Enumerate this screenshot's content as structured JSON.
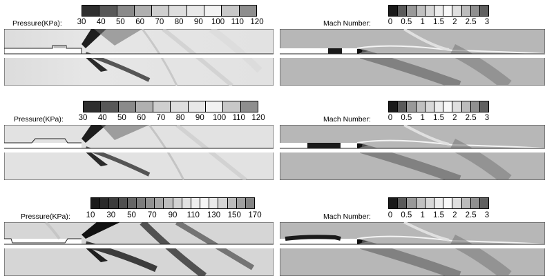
{
  "panels": [
    {
      "id": "pressure-1",
      "label": "Pressure(KPa):",
      "ticks": [
        "30",
        "40",
        "50",
        "60",
        "70",
        "80",
        "90",
        "100",
        "110",
        "120"
      ],
      "cell_colors": [
        "#2e2e2e",
        "#585858",
        "#8a8a8a",
        "#b0b0b0",
        "#cfcfcf",
        "#dedede",
        "#e8e8e8",
        "#f2f2f2",
        "#c8c8c8",
        "#8e8e8e"
      ]
    },
    {
      "id": "mach-1",
      "label": "Mach Number:",
      "ticks": [
        "0",
        "0.5",
        "1",
        "1.5",
        "2",
        "2.5",
        "3"
      ],
      "cell_colors": [
        "#1a1a1a",
        "#5a5a5a",
        "#999999",
        "#c0c0c0",
        "#d8d8d8",
        "#ededed",
        "#f9f9f9",
        "#e0e0e0",
        "#bcbcbc",
        "#909090",
        "#606060"
      ]
    },
    {
      "id": "pressure-2",
      "label": "Pressure(KPa):",
      "ticks": [
        "30",
        "40",
        "50",
        "60",
        "70",
        "80",
        "90",
        "100",
        "110",
        "120"
      ],
      "cell_colors": [
        "#2e2e2e",
        "#585858",
        "#8a8a8a",
        "#b0b0b0",
        "#cfcfcf",
        "#dedede",
        "#e8e8e8",
        "#f2f2f2",
        "#c8c8c8",
        "#8e8e8e"
      ]
    },
    {
      "id": "mach-2",
      "label": "Mach Number:",
      "ticks": [
        "0",
        "0.5",
        "1",
        "1.5",
        "2",
        "2.5",
        "3"
      ],
      "cell_colors": [
        "#1a1a1a",
        "#5a5a5a",
        "#999999",
        "#c0c0c0",
        "#d8d8d8",
        "#ededed",
        "#f9f9f9",
        "#e0e0e0",
        "#bcbcbc",
        "#909090",
        "#606060"
      ]
    },
    {
      "id": "pressure-3",
      "label": "Pressure(KPa):",
      "ticks": [
        "10",
        "30",
        "50",
        "70",
        "90",
        "110",
        "130",
        "150",
        "170"
      ],
      "cell_colors": [
        "#1a1a1a",
        "#2a2a2a",
        "#3c3c3c",
        "#505050",
        "#666666",
        "#7c7c7c",
        "#929292",
        "#a8a8a8",
        "#bebebe",
        "#d2d2d2",
        "#e2e2e2",
        "#eeeeee",
        "#f6f6f6",
        "#eaeaea",
        "#d6d6d6",
        "#bcbcbc",
        "#a0a0a0",
        "#848484"
      ]
    },
    {
      "id": "mach-3",
      "label": "Mach Number:",
      "ticks": [
        "0",
        "0.5",
        "1",
        "1.5",
        "2",
        "2.5",
        "3"
      ],
      "cell_colors": [
        "#1a1a1a",
        "#5a5a5a",
        "#999999",
        "#c0c0c0",
        "#d8d8d8",
        "#ededed",
        "#f9f9f9",
        "#e0e0e0",
        "#bcbcbc",
        "#909090",
        "#606060"
      ]
    }
  ]
}
